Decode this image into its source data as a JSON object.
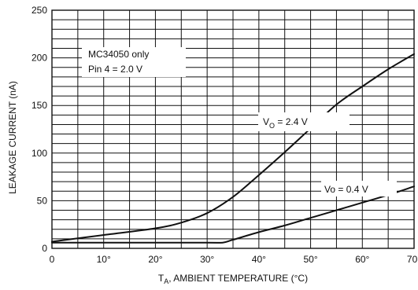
{
  "chart_data": {
    "type": "line",
    "xlabel_main": "T",
    "xlabel_sub": "A",
    "xlabel_rest": ", AMBIENT TEMPERATURE (°C)",
    "ylabel": "LEAKAGE CURRENT (nA)",
    "xlim": [
      0,
      70
    ],
    "ylim": [
      0,
      250
    ],
    "x_ticks": [
      0,
      10,
      20,
      30,
      40,
      50,
      60,
      70
    ],
    "x_tick_labels": [
      "0",
      "10°",
      "20°",
      "30°",
      "40°",
      "50°",
      "60°",
      "70°"
    ],
    "y_ticks": [
      0,
      50,
      100,
      150,
      200,
      250
    ],
    "y_tick_labels": [
      "0",
      "50",
      "100",
      "150",
      "200",
      "250"
    ],
    "grid": true,
    "annotations": {
      "box_line1": "MC34050 only",
      "box_line2": "Pin 4 = 2.0 V",
      "s1_main": "V",
      "s1_sub": "O",
      "s1_rest": " = 2.4 V",
      "s2_label": "Vo = 0.4 V"
    },
    "series": [
      {
        "x": [
          0,
          10,
          20,
          25,
          30,
          35,
          40,
          45,
          50,
          55,
          60,
          65,
          70
        ],
        "values": [
          7,
          14,
          21,
          27,
          37,
          54,
          77,
          101,
          126,
          151,
          170,
          188,
          204
        ]
      },
      {
        "x": [
          0,
          10,
          20,
          30,
          33,
          35,
          40,
          45,
          50,
          55,
          60,
          65,
          70
        ],
        "values": [
          6,
          6,
          6,
          6,
          6,
          9,
          17,
          24,
          32,
          40,
          48,
          56,
          65
        ]
      }
    ]
  }
}
